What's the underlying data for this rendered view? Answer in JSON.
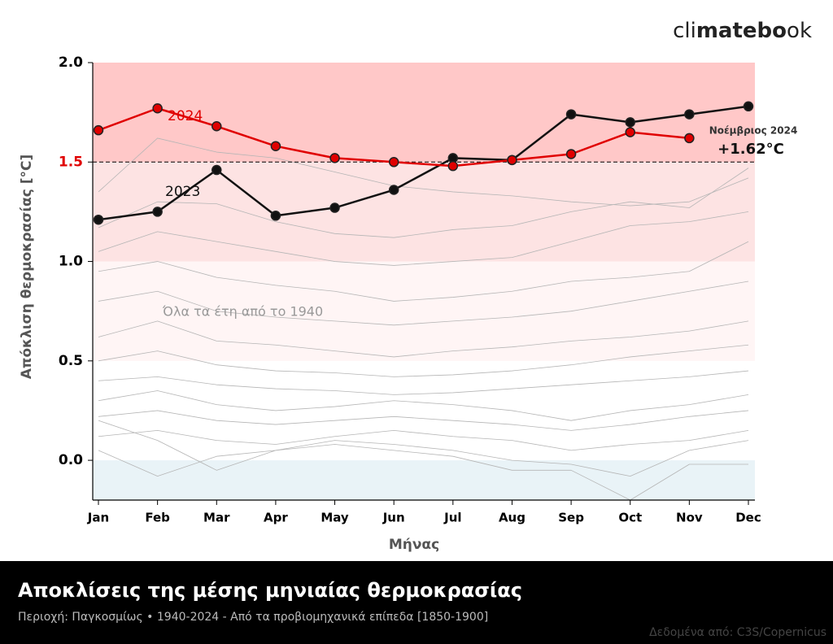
{
  "chart_data": {
    "type": "line",
    "logo": [
      "cli",
      "matebo",
      "ok"
    ],
    "title": "Αποκλίσεις της μέσης μηνιαίας θερμοκρασίας",
    "subtitle": "Περιοχή: Παγκοσμίως • 1940-2024 - Από τα προβιομηχανικά επίπεδα [1850-1900]",
    "source": "Δεδομένα από: C3S/Copernicus",
    "x_label": "Μήνας",
    "y_label": "Απόκλιση θερμοκρασίας [°C]",
    "categories": [
      "Jan",
      "Feb",
      "Mar",
      "Apr",
      "May",
      "Jun",
      "Jul",
      "Aug",
      "Sep",
      "Oct",
      "Nov",
      "Dec"
    ],
    "ylim": [
      -0.2,
      2.0
    ],
    "yticks": [
      {
        "value": 0,
        "label": "0.0"
      },
      0.5,
      {
        "value": 1,
        "label": "1.0"
      },
      1.5,
      {
        "value": 2,
        "label": "2.0"
      }
    ],
    "threshold": 1.5,
    "threshold_color": "#e00000",
    "bands": [
      {
        "from": 1.5,
        "to": 2.0,
        "color": "#ffc8c8"
      },
      {
        "from": 1.0,
        "to": 1.5,
        "color": "#fde3e3"
      },
      {
        "from": 0.5,
        "to": 1.0,
        "color": "#fff5f5"
      },
      {
        "from": -0.2,
        "to": 0,
        "color": "#e9f3f7"
      }
    ],
    "series": [
      {
        "name": "2024",
        "color": "#e00000",
        "values": [
          1.66,
          1.77,
          1.68,
          1.58,
          1.52,
          1.5,
          1.48,
          1.51,
          1.54,
          1.65,
          1.62,
          null
        ]
      },
      {
        "name": "2023",
        "color": "#111111",
        "values": [
          1.21,
          1.25,
          1.46,
          1.23,
          1.27,
          1.36,
          1.52,
          1.51,
          1.74,
          1.7,
          1.74,
          1.78
        ]
      }
    ],
    "background_color": "#b5b5b5",
    "background_series": [
      [
        1.35,
        1.62,
        1.55,
        1.52,
        1.45,
        1.38,
        1.35,
        1.33,
        1.3,
        1.28,
        1.3,
        1.42
      ],
      [
        1.17,
        1.3,
        1.29,
        1.2,
        1.14,
        1.12,
        1.16,
        1.18,
        1.25,
        1.3,
        1.27,
        1.47
      ],
      [
        1.05,
        1.15,
        1.1,
        1.05,
        1.0,
        0.98,
        1.0,
        1.02,
        1.1,
        1.18,
        1.2,
        1.25
      ],
      [
        0.95,
        1.0,
        0.92,
        0.88,
        0.85,
        0.8,
        0.82,
        0.85,
        0.9,
        0.92,
        0.95,
        1.1
      ],
      [
        0.8,
        0.85,
        0.75,
        0.72,
        0.7,
        0.68,
        0.7,
        0.72,
        0.75,
        0.8,
        0.85,
        0.9
      ],
      [
        0.62,
        0.7,
        0.6,
        0.58,
        0.55,
        0.52,
        0.55,
        0.57,
        0.6,
        0.62,
        0.65,
        0.7
      ],
      [
        0.5,
        0.55,
        0.48,
        0.45,
        0.44,
        0.42,
        0.43,
        0.45,
        0.48,
        0.52,
        0.55,
        0.58
      ],
      [
        0.4,
        0.42,
        0.38,
        0.36,
        0.35,
        0.33,
        0.34,
        0.36,
        0.38,
        0.4,
        0.42,
        0.45
      ],
      [
        0.3,
        0.35,
        0.28,
        0.25,
        0.27,
        0.3,
        0.28,
        0.25,
        0.2,
        0.25,
        0.28,
        0.33
      ],
      [
        0.22,
        0.25,
        0.2,
        0.18,
        0.2,
        0.22,
        0.2,
        0.18,
        0.15,
        0.18,
        0.22,
        0.25
      ],
      [
        0.12,
        0.15,
        0.1,
        0.08,
        0.12,
        0.15,
        0.12,
        0.1,
        0.05,
        0.08,
        0.1,
        0.15
      ],
      [
        0.05,
        -0.08,
        0.02,
        0.05,
        0.08,
        0.05,
        0.02,
        -0.05,
        -0.05,
        -0.2,
        -0.02,
        -0.02
      ],
      [
        0.2,
        0.1,
        -0.05,
        0.05,
        0.1,
        0.08,
        0.05,
        0.0,
        -0.02,
        -0.08,
        0.05,
        0.1
      ]
    ],
    "annotations": [
      {
        "text": "2024",
        "color": "#e00000"
      },
      {
        "text": "2023",
        "color": "#111111"
      },
      {
        "text": "Όλα τα έτη από το 1940",
        "color": "#999999"
      },
      {
        "text": "Νοέμβριος 2024",
        "color": "#333333"
      },
      {
        "text": "+1.62°C",
        "color": "#111111"
      }
    ]
  }
}
